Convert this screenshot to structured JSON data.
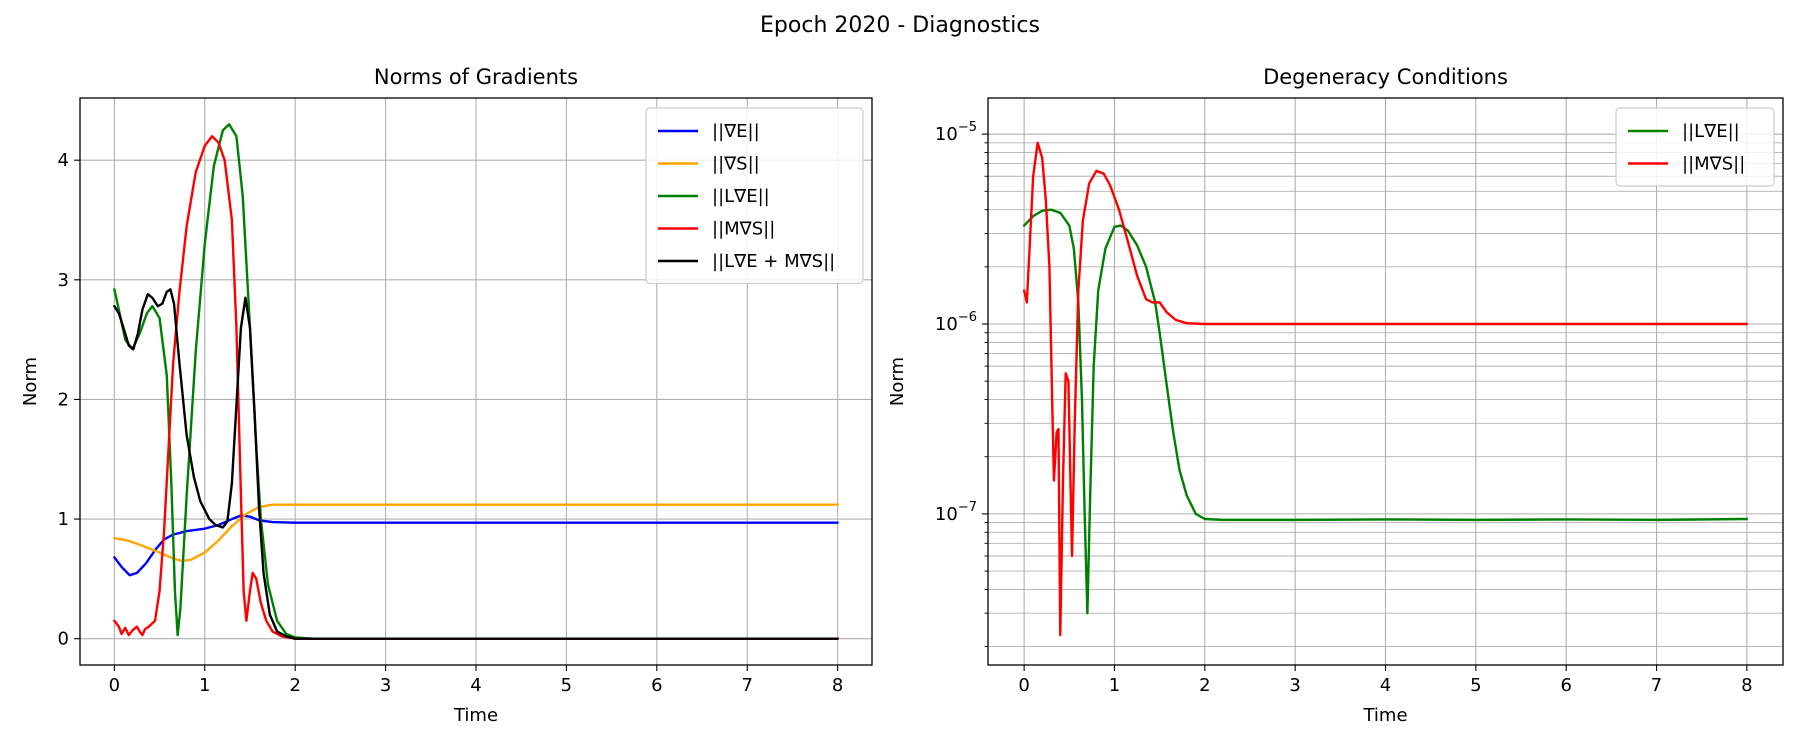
{
  "figure": {
    "suptitle": "Epoch 2020 - Diagnostics"
  },
  "chart_data": [
    {
      "type": "line",
      "title": "Norms of Gradients",
      "xlabel": "Time",
      "ylabel": "Norm",
      "xlim": [
        -0.38,
        8.38
      ],
      "ylim": [
        -0.22,
        4.52
      ],
      "xticks": [
        0,
        1,
        2,
        3,
        4,
        5,
        6,
        7,
        8
      ],
      "yticks": [
        0,
        1,
        2,
        3,
        4
      ],
      "grid": true,
      "legend_position": "top-right",
      "series": [
        {
          "name": "||∇E||",
          "color": "#0000ff",
          "points": [
            [
              0,
              0.68
            ],
            [
              0.08,
              0.6
            ],
            [
              0.17,
              0.53
            ],
            [
              0.25,
              0.55
            ],
            [
              0.35,
              0.63
            ],
            [
              0.45,
              0.74
            ],
            [
              0.55,
              0.83
            ],
            [
              0.65,
              0.87
            ],
            [
              0.8,
              0.9
            ],
            [
              1.0,
              0.92
            ],
            [
              1.15,
              0.95
            ],
            [
              1.3,
              1.0
            ],
            [
              1.4,
              1.03
            ],
            [
              1.5,
              1.02
            ],
            [
              1.6,
              0.99
            ],
            [
              1.75,
              0.975
            ],
            [
              2,
              0.97
            ],
            [
              3,
              0.97
            ],
            [
              4,
              0.97
            ],
            [
              5,
              0.97
            ],
            [
              6,
              0.97
            ],
            [
              7,
              0.97
            ],
            [
              8,
              0.97
            ]
          ]
        },
        {
          "name": "||∇S||",
          "color": "#ffa500",
          "points": [
            [
              0,
              0.84
            ],
            [
              0.15,
              0.82
            ],
            [
              0.3,
              0.78
            ],
            [
              0.5,
              0.72
            ],
            [
              0.65,
              0.67
            ],
            [
              0.75,
              0.65
            ],
            [
              0.85,
              0.66
            ],
            [
              1.0,
              0.72
            ],
            [
              1.15,
              0.82
            ],
            [
              1.3,
              0.94
            ],
            [
              1.45,
              1.04
            ],
            [
              1.6,
              1.1
            ],
            [
              1.75,
              1.12
            ],
            [
              2,
              1.12
            ],
            [
              3,
              1.12
            ],
            [
              4,
              1.12
            ],
            [
              5,
              1.12
            ],
            [
              6,
              1.12
            ],
            [
              7,
              1.12
            ],
            [
              8,
              1.12
            ]
          ]
        },
        {
          "name": "||L∇E||",
          "color": "#008000",
          "points": [
            [
              0,
              2.92
            ],
            [
              0.05,
              2.75
            ],
            [
              0.12,
              2.5
            ],
            [
              0.2,
              2.42
            ],
            [
              0.28,
              2.55
            ],
            [
              0.36,
              2.72
            ],
            [
              0.42,
              2.78
            ],
            [
              0.5,
              2.68
            ],
            [
              0.58,
              2.2
            ],
            [
              0.63,
              1.3
            ],
            [
              0.67,
              0.4
            ],
            [
              0.7,
              0.03
            ],
            [
              0.73,
              0.25
            ],
            [
              0.8,
              1.2
            ],
            [
              0.9,
              2.4
            ],
            [
              1.0,
              3.3
            ],
            [
              1.1,
              3.95
            ],
            [
              1.2,
              4.25
            ],
            [
              1.27,
              4.3
            ],
            [
              1.35,
              4.2
            ],
            [
              1.42,
              3.7
            ],
            [
              1.5,
              2.6
            ],
            [
              1.57,
              1.6
            ],
            [
              1.62,
              1.0
            ],
            [
              1.7,
              0.45
            ],
            [
              1.8,
              0.15
            ],
            [
              1.9,
              0.04
            ],
            [
              2,
              0.01
            ],
            [
              2.2,
              0.0
            ],
            [
              3,
              0.0
            ],
            [
              4,
              0.0
            ],
            [
              5,
              0.0
            ],
            [
              6,
              0.0
            ],
            [
              7,
              0.0
            ],
            [
              8,
              0.0
            ]
          ]
        },
        {
          "name": "||M∇S||",
          "color": "#ff0000",
          "points": [
            [
              0,
              0.15
            ],
            [
              0.05,
              0.1
            ],
            [
              0.08,
              0.04
            ],
            [
              0.12,
              0.09
            ],
            [
              0.16,
              0.03
            ],
            [
              0.2,
              0.07
            ],
            [
              0.25,
              0.1
            ],
            [
              0.28,
              0.06
            ],
            [
              0.31,
              0.03
            ],
            [
              0.34,
              0.08
            ],
            [
              0.38,
              0.1
            ],
            [
              0.45,
              0.15
            ],
            [
              0.5,
              0.4
            ],
            [
              0.55,
              0.9
            ],
            [
              0.6,
              1.6
            ],
            [
              0.65,
              2.3
            ],
            [
              0.72,
              2.9
            ],
            [
              0.8,
              3.45
            ],
            [
              0.9,
              3.9
            ],
            [
              1.0,
              4.12
            ],
            [
              1.08,
              4.2
            ],
            [
              1.15,
              4.15
            ],
            [
              1.22,
              4.0
            ],
            [
              1.3,
              3.5
            ],
            [
              1.35,
              2.6
            ],
            [
              1.4,
              1.2
            ],
            [
              1.43,
              0.4
            ],
            [
              1.46,
              0.15
            ],
            [
              1.5,
              0.4
            ],
            [
              1.53,
              0.55
            ],
            [
              1.57,
              0.5
            ],
            [
              1.62,
              0.3
            ],
            [
              1.68,
              0.15
            ],
            [
              1.75,
              0.06
            ],
            [
              1.85,
              0.02
            ],
            [
              2,
              0.0
            ],
            [
              3,
              0.0
            ],
            [
              4,
              0.0
            ],
            [
              5,
              0.0
            ],
            [
              6,
              0.0
            ],
            [
              7,
              0.0
            ],
            [
              8,
              0.0
            ]
          ]
        },
        {
          "name": "||L∇E + M∇S||",
          "color": "#000000",
          "points": [
            [
              0,
              2.78
            ],
            [
              0.05,
              2.72
            ],
            [
              0.1,
              2.6
            ],
            [
              0.16,
              2.45
            ],
            [
              0.21,
              2.42
            ],
            [
              0.26,
              2.55
            ],
            [
              0.31,
              2.75
            ],
            [
              0.37,
              2.88
            ],
            [
              0.42,
              2.85
            ],
            [
              0.48,
              2.78
            ],
            [
              0.53,
              2.8
            ],
            [
              0.58,
              2.9
            ],
            [
              0.62,
              2.92
            ],
            [
              0.66,
              2.8
            ],
            [
              0.72,
              2.3
            ],
            [
              0.8,
              1.7
            ],
            [
              0.88,
              1.35
            ],
            [
              0.95,
              1.15
            ],
            [
              1.05,
              1.0
            ],
            [
              1.12,
              0.95
            ],
            [
              1.2,
              0.93
            ],
            [
              1.25,
              0.98
            ],
            [
              1.3,
              1.3
            ],
            [
              1.35,
              1.95
            ],
            [
              1.4,
              2.6
            ],
            [
              1.45,
              2.85
            ],
            [
              1.5,
              2.6
            ],
            [
              1.55,
              1.9
            ],
            [
              1.6,
              1.1
            ],
            [
              1.65,
              0.55
            ],
            [
              1.72,
              0.2
            ],
            [
              1.8,
              0.06
            ],
            [
              1.9,
              0.02
            ],
            [
              2,
              0.0
            ],
            [
              3,
              0.0
            ],
            [
              4,
              0.0
            ],
            [
              5,
              0.0
            ],
            [
              6,
              0.0
            ],
            [
              7,
              0.0
            ],
            [
              8,
              0.0
            ]
          ]
        }
      ]
    },
    {
      "type": "line",
      "title": "Degeneracy Conditions",
      "xlabel": "Time",
      "ylabel": "Norm",
      "yscale": "log",
      "xlim": [
        -0.4,
        8.4
      ],
      "ylim": [
        1.6e-08,
        1.55e-05
      ],
      "xticks": [
        0,
        1,
        2,
        3,
        4,
        5,
        6,
        7,
        8
      ],
      "yticks": [
        {
          "value": 1e-07,
          "label_base": "10",
          "label_exp": "−7"
        },
        {
          "value": 1e-06,
          "label_base": "10",
          "label_exp": "−6"
        },
        {
          "value": 1e-05,
          "label_base": "10",
          "label_exp": "−5"
        }
      ],
      "grid": true,
      "legend_position": "top-right",
      "series": [
        {
          "name": "||L∇E||",
          "color": "#008000",
          "points": [
            [
              0,
              3.3e-06
            ],
            [
              0.1,
              3.7e-06
            ],
            [
              0.2,
              3.95e-06
            ],
            [
              0.3,
              4e-06
            ],
            [
              0.4,
              3.85e-06
            ],
            [
              0.5,
              3.3e-06
            ],
            [
              0.55,
              2.5e-06
            ],
            [
              0.6,
              1.3e-06
            ],
            [
              0.64,
              4e-07
            ],
            [
              0.67,
              1e-07
            ],
            [
              0.7,
              3e-08
            ],
            [
              0.73,
              1.2e-07
            ],
            [
              0.77,
              6e-07
            ],
            [
              0.82,
              1.5e-06
            ],
            [
              0.9,
              2.5e-06
            ],
            [
              1.0,
              3.25e-06
            ],
            [
              1.07,
              3.3e-06
            ],
            [
              1.15,
              3.1e-06
            ],
            [
              1.25,
              2.6e-06
            ],
            [
              1.35,
              2e-06
            ],
            [
              1.45,
              1.3e-06
            ],
            [
              1.5,
              9e-07
            ],
            [
              1.55,
              6e-07
            ],
            [
              1.6,
              4e-07
            ],
            [
              1.65,
              2.7e-07
            ],
            [
              1.72,
              1.7e-07
            ],
            [
              1.8,
              1.25e-07
            ],
            [
              1.9,
              1e-07
            ],
            [
              2,
              9.4e-08
            ],
            [
              2.2,
              9.3e-08
            ],
            [
              3,
              9.3e-08
            ],
            [
              4,
              9.35e-08
            ],
            [
              5,
              9.3e-08
            ],
            [
              6,
              9.35e-08
            ],
            [
              7,
              9.3e-08
            ],
            [
              8,
              9.4e-08
            ]
          ]
        },
        {
          "name": "||M∇S||",
          "color": "#ff0000",
          "points": [
            [
              0,
              1.5e-06
            ],
            [
              0.03,
              1.3e-06
            ],
            [
              0.06,
              2.5e-06
            ],
            [
              0.1,
              6e-06
            ],
            [
              0.15,
              9e-06
            ],
            [
              0.2,
              7.5e-06
            ],
            [
              0.24,
              4.5e-06
            ],
            [
              0.28,
              2e-06
            ],
            [
              0.31,
              4e-07
            ],
            [
              0.33,
              1.5e-07
            ],
            [
              0.36,
              2.7e-07
            ],
            [
              0.38,
              2.8e-07
            ],
            [
              0.4,
              2.3e-08
            ],
            [
              0.43,
              1.5e-07
            ],
            [
              0.46,
              5.5e-07
            ],
            [
              0.49,
              5e-07
            ],
            [
              0.53,
              6e-08
            ],
            [
              0.56,
              3e-07
            ],
            [
              0.6,
              1.5e-06
            ],
            [
              0.65,
              3.5e-06
            ],
            [
              0.72,
              5.5e-06
            ],
            [
              0.8,
              6.4e-06
            ],
            [
              0.88,
              6.2e-06
            ],
            [
              0.95,
              5.4e-06
            ],
            [
              1.05,
              4e-06
            ],
            [
              1.15,
              2.7e-06
            ],
            [
              1.25,
              1.8e-06
            ],
            [
              1.35,
              1.35e-06
            ],
            [
              1.42,
              1.3e-06
            ],
            [
              1.5,
              1.3e-06
            ],
            [
              1.58,
              1.15e-06
            ],
            [
              1.68,
              1.05e-06
            ],
            [
              1.8,
              1.01e-06
            ],
            [
              2,
              1e-06
            ],
            [
              3,
              1e-06
            ],
            [
              4,
              1e-06
            ],
            [
              5,
              1e-06
            ],
            [
              6,
              1e-06
            ],
            [
              7,
              1e-06
            ],
            [
              8,
              1e-06
            ]
          ]
        }
      ]
    }
  ]
}
